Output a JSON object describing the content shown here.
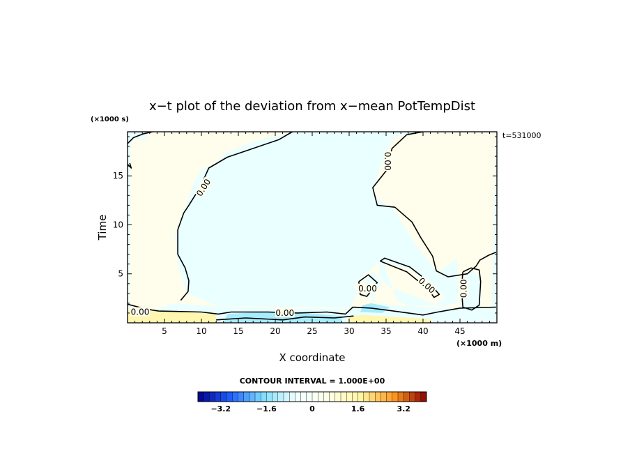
{
  "chart_data": {
    "type": "contour",
    "title": "x−t plot of the deviation from x−mean PotTempDist",
    "xlabel": "X coordinate",
    "ylabel": "Time",
    "x_unit": "(×1000 m)",
    "y_unit": "(×1000 s)",
    "time_label": "t=531000",
    "xlim": [
      0,
      50
    ],
    "ylim": [
      0,
      19.5
    ],
    "x_ticks": [
      5,
      10,
      15,
      20,
      25,
      30,
      35,
      40,
      45
    ],
    "y_ticks": [
      5,
      10,
      15
    ],
    "contour_level": 0,
    "contour_label": "0.00",
    "contour_interval_text": "CONTOUR INTERVAL = 1.000E+00",
    "colorbar": {
      "min": -4,
      "max": 4,
      "step": 0.2,
      "tick_values": [
        -3.2,
        -1.6,
        0,
        1.6,
        3.2
      ],
      "tick_labels": [
        "−3.2",
        "−1.6",
        "0",
        "1.6",
        "3.2"
      ],
      "colors": [
        "#00008b",
        "#2060ff",
        "#7fdfff",
        "#f0ffff",
        "#ffffe8",
        "#fff5a0",
        "#ff9a20",
        "#8b0000"
      ]
    },
    "regions_positive": [
      {
        "name": "central-positive-region",
        "points": [
          [
            6.4,
            2
          ],
          [
            10,
            1.8
          ],
          [
            20,
            1.5
          ],
          [
            30,
            1.4
          ],
          [
            31.5,
            3.6
          ],
          [
            33,
            5.2
          ],
          [
            34.7,
            4.4
          ],
          [
            33,
            2.2
          ],
          [
            36,
            1.8
          ],
          [
            40,
            1.6
          ],
          [
            45,
            1.5
          ],
          [
            45.2,
            4.4
          ],
          [
            46.6,
            5.3
          ],
          [
            47.8,
            4.7
          ],
          [
            47.8,
            1.4
          ],
          [
            49.3,
            1.6
          ],
          [
            49.9,
            19.5
          ],
          [
            40,
            19.5
          ],
          [
            36,
            19
          ],
          [
            34,
            15.5
          ],
          [
            33.2,
            13
          ],
          [
            36,
            11.6
          ],
          [
            39,
            8
          ],
          [
            42,
            5.1
          ],
          [
            44.6,
            6.6
          ],
          [
            44.8,
            2.2
          ],
          [
            42.6,
            1.6
          ],
          [
            35.6,
            3.6
          ],
          [
            34,
            4.5
          ],
          [
            34.2,
            6.3
          ],
          [
            38.5,
            5.4
          ],
          [
            43,
            2.6
          ],
          [
            41.5,
            1.8
          ],
          [
            38.5,
            1.7
          ],
          [
            36.5,
            2.2
          ],
          [
            34.5,
            6.5
          ],
          [
            31.6,
            4.5
          ],
          [
            30.5,
            3.6
          ],
          [
            33.5,
            2.3
          ],
          [
            36,
            1.5
          ],
          [
            26,
            1.6
          ],
          [
            22,
            1.6
          ],
          [
            12,
            1.8
          ],
          [
            8,
            3
          ],
          [
            6.8,
            6
          ],
          [
            6.4,
            9
          ],
          [
            7.5,
            11
          ],
          [
            8.2,
            12.5
          ],
          [
            8.8,
            14
          ],
          [
            10,
            15.7
          ],
          [
            12,
            16.2
          ],
          [
            13.5,
            17.4
          ],
          [
            17,
            18.5
          ],
          [
            20,
            19
          ],
          [
            22.3,
            19.5
          ],
          [
            2,
            19.5
          ],
          [
            2.4,
            19.3
          ],
          [
            2.8,
            18.6
          ],
          [
            0.9,
            18.8
          ],
          [
            0.4,
            17.8
          ],
          [
            0.2,
            1.6
          ],
          [
            3.4,
            1.3
          ]
        ]
      },
      {
        "name": "bottom-positive-strip",
        "points": [
          [
            0,
            0
          ],
          [
            12,
            0
          ],
          [
            12,
            0.9
          ],
          [
            8,
            1.1
          ],
          [
            4,
            1.2
          ],
          [
            0,
            1.3
          ]
        ]
      },
      {
        "name": "right-bottom-positive-strip",
        "points": [
          [
            30,
            0
          ],
          [
            41,
            0
          ],
          [
            41,
            0.4
          ],
          [
            36,
            0.6
          ],
          [
            32,
            0.8
          ],
          [
            30,
            0.7
          ]
        ]
      }
    ],
    "regions_negative": [
      {
        "name": "bottom-negative-patch",
        "points": [
          [
            13,
            0
          ],
          [
            29,
            0
          ],
          [
            29,
            0.7
          ],
          [
            24,
            1
          ],
          [
            18,
            1.1
          ],
          [
            13.5,
            0.9
          ]
        ]
      },
      {
        "name": "mid-bottom-negative-patch",
        "points": [
          [
            31.5,
            1.1
          ],
          [
            34.5,
            1.0
          ],
          [
            35.5,
            1.6
          ],
          [
            33,
            2
          ],
          [
            31.8,
            1.8
          ]
        ]
      }
    ],
    "contour_lines": [
      {
        "name": "contour-upper-left",
        "points": [
          [
            0,
            18.3
          ],
          [
            0.8,
            18.9
          ],
          [
            2.2,
            19.3
          ],
          [
            3.4,
            19.5
          ]
        ]
      },
      {
        "name": "contour-left-boundary",
        "points": [
          [
            0,
            16.2
          ],
          [
            0.5,
            15.8
          ],
          [
            0.3,
            16.3
          ]
        ]
      },
      {
        "name": "contour-main-upper",
        "points": [
          [
            22.3,
            19.5
          ],
          [
            20.5,
            18.7
          ],
          [
            17,
            17.8
          ],
          [
            13.5,
            16.9
          ],
          [
            11,
            15.8
          ],
          [
            9.8,
            13.8
          ],
          [
            8.3,
            12
          ],
          [
            7.6,
            11.2
          ],
          [
            6.8,
            9.5
          ],
          [
            6.8,
            7
          ],
          [
            7.8,
            5.6
          ],
          [
            8.3,
            4.3
          ],
          [
            8.2,
            3.2
          ],
          [
            7.2,
            2.3
          ]
        ]
      },
      {
        "name": "contour-right-tongue",
        "points": [
          [
            40,
            19.5
          ],
          [
            37.8,
            19.2
          ],
          [
            35.8,
            17.8
          ],
          [
            35.1,
            15.6
          ],
          [
            33.2,
            13.8
          ],
          [
            33.8,
            12
          ],
          [
            36.2,
            11.8
          ],
          [
            38.5,
            10.3
          ],
          [
            39.7,
            8.7
          ],
          [
            41.3,
            6.8
          ],
          [
            41.8,
            5.3
          ],
          [
            43.4,
            4.7
          ],
          [
            46,
            5
          ],
          [
            47.2,
            5.8
          ],
          [
            47.7,
            6.4
          ],
          [
            48.9,
            6.9
          ],
          [
            49.9,
            7.2
          ]
        ]
      },
      {
        "name": "contour-diagonal-loop",
        "points": [
          [
            34.2,
            6.3
          ],
          [
            37.8,
            5.2
          ],
          [
            40.6,
            3.5
          ],
          [
            41.5,
            2.6
          ],
          [
            42.2,
            2.9
          ],
          [
            40.6,
            4.3
          ],
          [
            38.2,
            5.7
          ],
          [
            34.8,
            6.6
          ],
          [
            34.2,
            6.3
          ]
        ]
      },
      {
        "name": "contour-right-loop",
        "points": [
          [
            45.4,
            5.2
          ],
          [
            46.5,
            5.6
          ],
          [
            47.6,
            5.4
          ],
          [
            47.8,
            4.2
          ],
          [
            47.6,
            1.8
          ],
          [
            46.6,
            1.3
          ],
          [
            45.4,
            1.6
          ],
          [
            45.2,
            3.5
          ],
          [
            45.4,
            5.2
          ]
        ]
      },
      {
        "name": "contour-center-loop",
        "points": [
          [
            31.3,
            4.2
          ],
          [
            32.6,
            4.9
          ],
          [
            33.8,
            4.1
          ],
          [
            33.1,
            3.4
          ],
          [
            32.4,
            2.7
          ],
          [
            31.5,
            2.9
          ],
          [
            31.3,
            4.2
          ]
        ]
      },
      {
        "name": "contour-bottom-band",
        "points": [
          [
            0,
            1.9
          ],
          [
            2.5,
            1.4
          ],
          [
            4.2,
            1.2
          ],
          [
            10,
            1.1
          ],
          [
            12.3,
            0.9
          ],
          [
            14,
            1.1
          ],
          [
            19,
            1.1
          ],
          [
            23,
            1.0
          ],
          [
            27,
            1.1
          ],
          [
            29.5,
            0.9
          ],
          [
            30.5,
            1.6
          ],
          [
            33,
            1.5
          ],
          [
            36,
            1.2
          ],
          [
            40,
            0.8
          ],
          [
            42,
            1.1
          ],
          [
            45,
            1.5
          ],
          [
            49.9,
            1.6
          ]
        ]
      },
      {
        "name": "contour-bottom-inner",
        "points": [
          [
            12,
            0.3
          ],
          [
            16,
            0.5
          ],
          [
            21,
            0.3
          ],
          [
            24,
            0.6
          ],
          [
            28,
            0.5
          ],
          [
            30.6,
            0.7
          ]
        ]
      }
    ],
    "contour_labels": [
      {
        "x": 10.3,
        "y": 13.8,
        "angle": -57
      },
      {
        "x": 35.2,
        "y": 16.5,
        "angle": 90
      },
      {
        "x": 32.5,
        "y": 3.5,
        "angle": 0
      },
      {
        "x": 40.5,
        "y": 3.8,
        "angle": 42
      },
      {
        "x": 45.5,
        "y": 3.5,
        "angle": -90
      },
      {
        "x": 21.3,
        "y": 1.0,
        "angle": 0
      },
      {
        "x": 1.7,
        "y": 1.1,
        "angle": 0
      }
    ]
  }
}
